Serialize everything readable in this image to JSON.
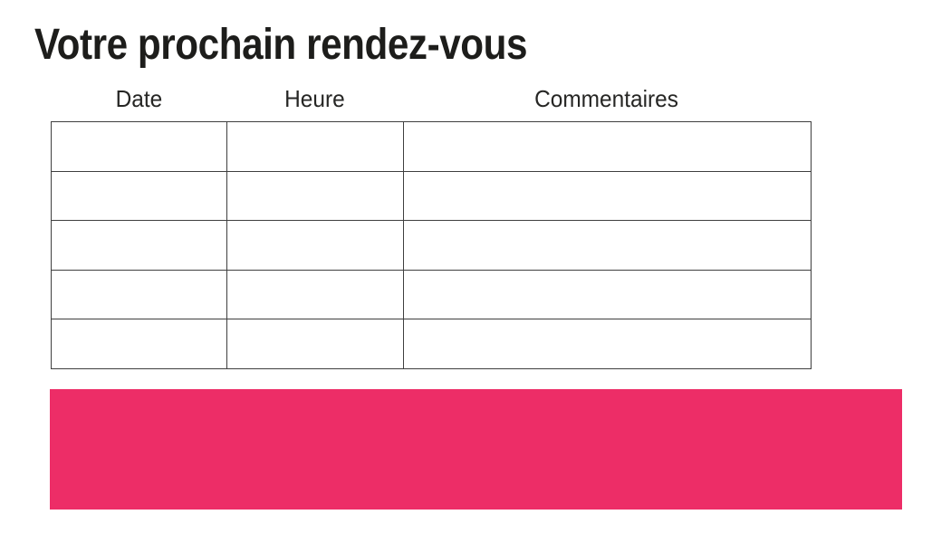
{
  "page": {
    "title": "Votre prochain rendez-vous"
  },
  "table": {
    "headers": [
      "Date",
      "Heure",
      "Commentaires"
    ],
    "rows": [
      [
        "",
        "",
        ""
      ],
      [
        "",
        "",
        ""
      ],
      [
        "",
        "",
        ""
      ],
      [
        "",
        "",
        ""
      ],
      [
        "",
        "",
        ""
      ]
    ]
  },
  "banner": {
    "color": "#ED2D67"
  },
  "colors": {
    "title_text": "#1D1D1B",
    "header_text": "#262624",
    "table_border": "#3F3F3F",
    "accent_pink": "#ED2D67",
    "background": "#FFFFFF"
  }
}
